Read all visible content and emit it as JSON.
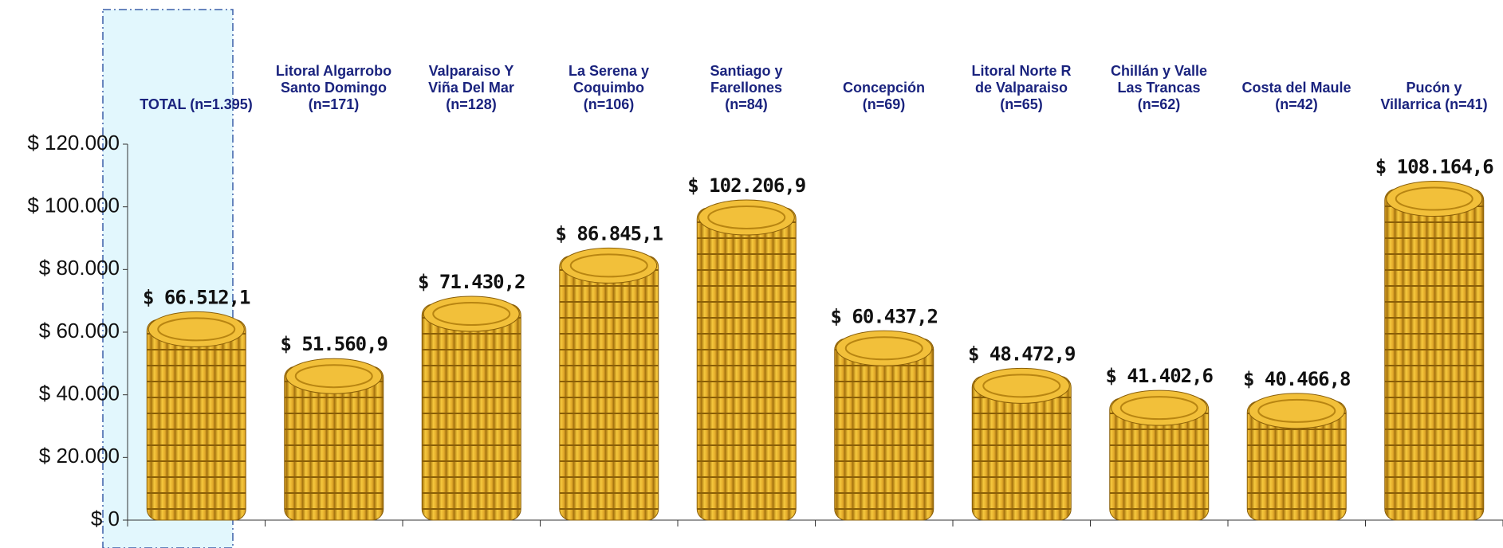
{
  "chart_data": {
    "type": "bar",
    "categories": [
      "TOTAL (n=1.395)",
      "Litoral Algarrobo\nSanto Domingo\n(n=171)",
      "Valparaiso Y\nViña  Del Mar\n(n=128)",
      "La Serena  y\nCoquimbo\n(n=106)",
      "Santiago y\nFarellones\n(n=84)",
      "Concepción\n(n=69)",
      "Litoral Norte R\nde Valparaiso\n(n=65)",
      "Chillán y Valle\nLas Trancas\n(n=62)",
      "Costa del Maule\n(n=42)",
      "Pucón y\nVillarrica (n=41)"
    ],
    "values": [
      66512.1,
      51560.9,
      71430.2,
      86845.1,
      102206.9,
      60437.2,
      48472.9,
      41402.6,
      40466.8,
      108164.6
    ],
    "value_labels": [
      "$ 66.512,1",
      "$ 51.560,9",
      "$ 71.430,2",
      "$ 86.845,1",
      "$ 102.206,9",
      "$ 60.437,2",
      "$ 48.472,9",
      "$ 41.402,6",
      "$ 40.466,8",
      "$ 108.164,6"
    ],
    "color": "#e8b22c",
    "ylim": [
      0,
      120000
    ],
    "yticks": [
      {
        "value": 0,
        "label": "$ 0"
      },
      {
        "value": 20000,
        "label": "$ 20.000"
      },
      {
        "value": 40000,
        "label": "$ 40.000"
      },
      {
        "value": 60000,
        "label": "$ 60.000"
      },
      {
        "value": 80000,
        "label": "$ 80.000"
      },
      {
        "value": 100000,
        "label": "$ 100.000"
      },
      {
        "value": 120000,
        "label": "$ 120.000"
      }
    ]
  }
}
